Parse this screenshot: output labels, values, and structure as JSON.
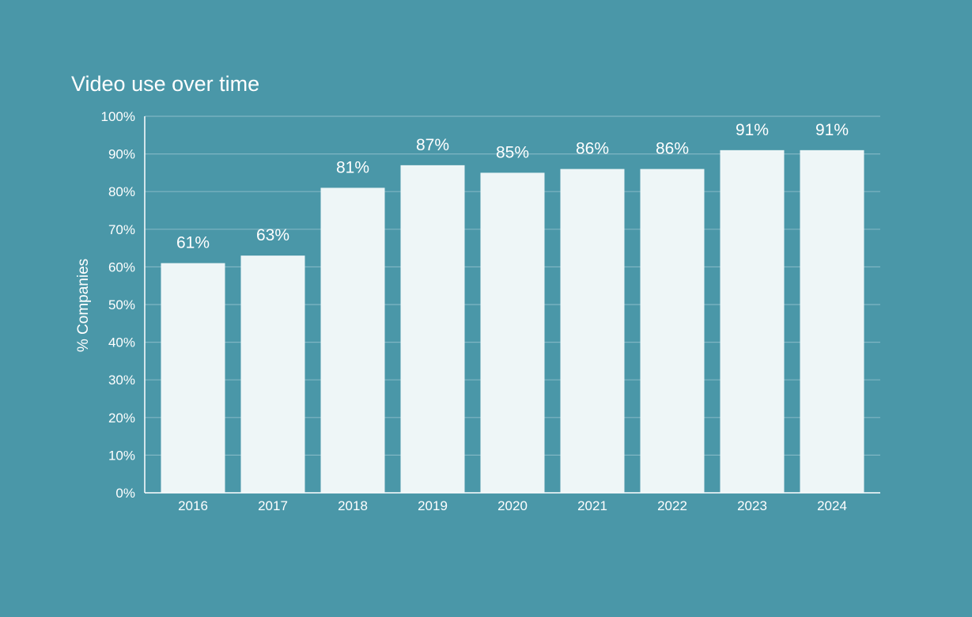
{
  "colors": {
    "background": "#4a97a8",
    "bar": "#eef6f7",
    "gridline": "#7fb6c3",
    "axis": "#ffffff",
    "text": "#ffffff"
  },
  "chart_data": {
    "type": "bar",
    "title": "Video use over time",
    "xlabel": "",
    "ylabel": "% Companies",
    "categories": [
      "2016",
      "2017",
      "2018",
      "2019",
      "2020",
      "2021",
      "2022",
      "2023",
      "2024"
    ],
    "values": [
      61,
      63,
      81,
      87,
      85,
      86,
      86,
      91,
      91
    ],
    "data_labels": [
      "61%",
      "63%",
      "81%",
      "87%",
      "85%",
      "86%",
      "86%",
      "91%",
      "91%"
    ],
    "ylim": [
      0,
      100
    ],
    "yticks": [
      0,
      10,
      20,
      30,
      40,
      50,
      60,
      70,
      80,
      90,
      100
    ],
    "ytick_labels": [
      "0%",
      "10%",
      "20%",
      "30%",
      "40%",
      "50%",
      "60%",
      "70%",
      "80%",
      "90%",
      "100%"
    ],
    "grid": true,
    "legend": "none"
  }
}
